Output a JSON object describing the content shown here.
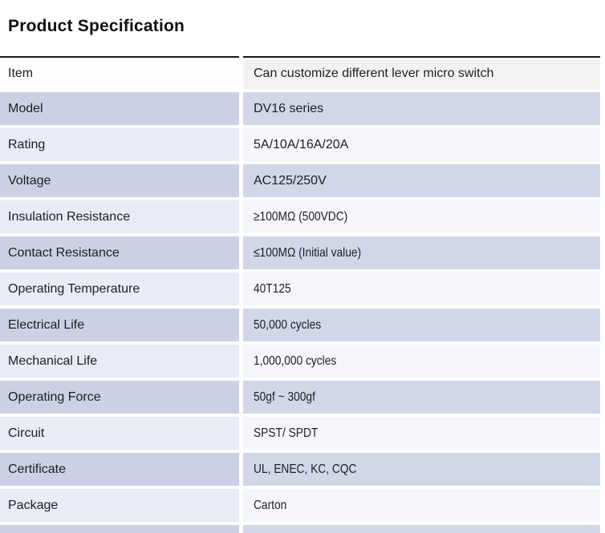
{
  "title": "Product Specification",
  "table": {
    "rows": [
      {
        "label": "Item",
        "value": "Can customize different lever micro switch"
      },
      {
        "label": "Model",
        "value": "DV16 series"
      },
      {
        "label": "Rating",
        "value": "5A/10A/16A/20A"
      },
      {
        "label": "Voltage",
        "value": "AC125/250V"
      },
      {
        "label": "Insulation Resistance",
        "value": "≥100MΩ (500VDC)"
      },
      {
        "label": "Contact Resistance",
        "value": "≤100MΩ (Initial value)"
      },
      {
        "label": "Operating Temperature",
        "value": "40T125"
      },
      {
        "label": "Electrical Life",
        "value": "50,000 cycles"
      },
      {
        "label": "Mechanical Life",
        "value": "1,000,000 cycles"
      },
      {
        "label": "Operating Force",
        "value": "50gf ~ 300gf"
      },
      {
        "label": "Circuit",
        "value": "SPST/ SPDT"
      },
      {
        "label": "Certificate",
        "value": "UL, ENEC, KC, CQC"
      },
      {
        "label": "Package",
        "value": "Carton"
      }
    ]
  },
  "colors": {
    "table_top_border": "#1a1a1a",
    "header_row_label_bg": "#fefefe",
    "header_row_value_bg": "#f2f2f2",
    "odd_row_label_bg": "#e9ebf5",
    "odd_row_value_bg": "#f5f6fb",
    "even_row_label_bg": "#cbd0e4",
    "even_row_value_bg": "#d2d6e9",
    "text": "#1f1f1f"
  }
}
